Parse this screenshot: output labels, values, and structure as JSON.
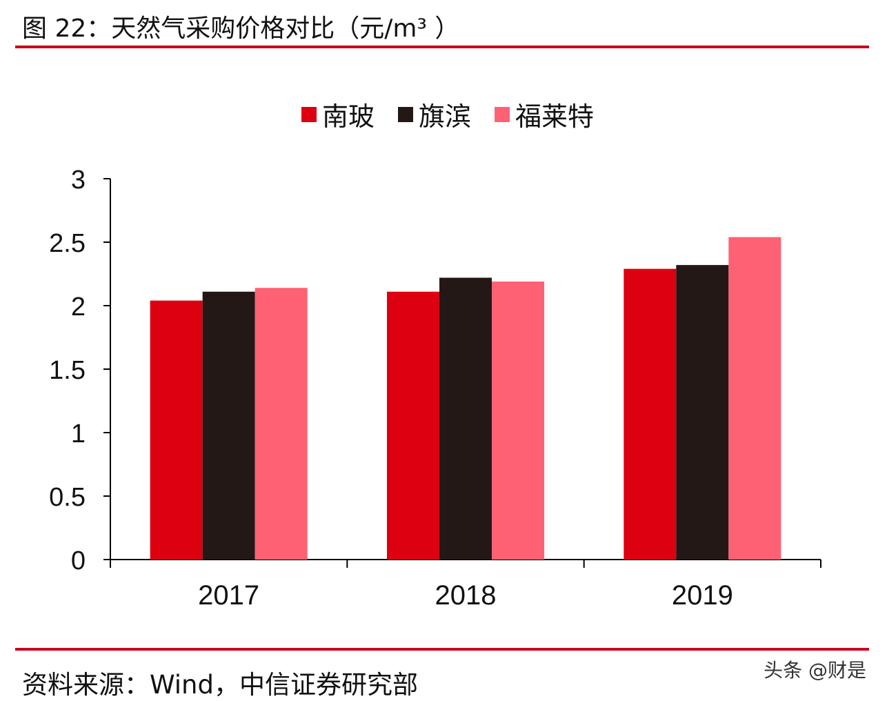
{
  "title": "图 22：天然气采购价格对比（元/m³ ）",
  "source": "资料来源：Wind，中信证券研究部",
  "watermark": "头条 @财是",
  "chart_data": {
    "type": "bar",
    "title": "图 22：天然气采购价格对比（元/m³ ）",
    "xlabel": "",
    "ylabel": "",
    "categories": [
      "2017",
      "2018",
      "2019"
    ],
    "series": [
      {
        "name": "南玻",
        "color": "#dc0010",
        "values": [
          2.04,
          2.11,
          2.29
        ]
      },
      {
        "name": "旗滨",
        "color": "#231815",
        "values": [
          2.11,
          2.22,
          2.32
        ]
      },
      {
        "name": "福莱特",
        "color": "#ff6174",
        "values": [
          2.14,
          2.19,
          2.54
        ]
      }
    ],
    "ylim": [
      0,
      3
    ],
    "yticks": [
      "0",
      "0.5",
      "1",
      "1.5",
      "2",
      "2.5",
      "3"
    ],
    "grid": false,
    "legend_position": "top-center"
  }
}
